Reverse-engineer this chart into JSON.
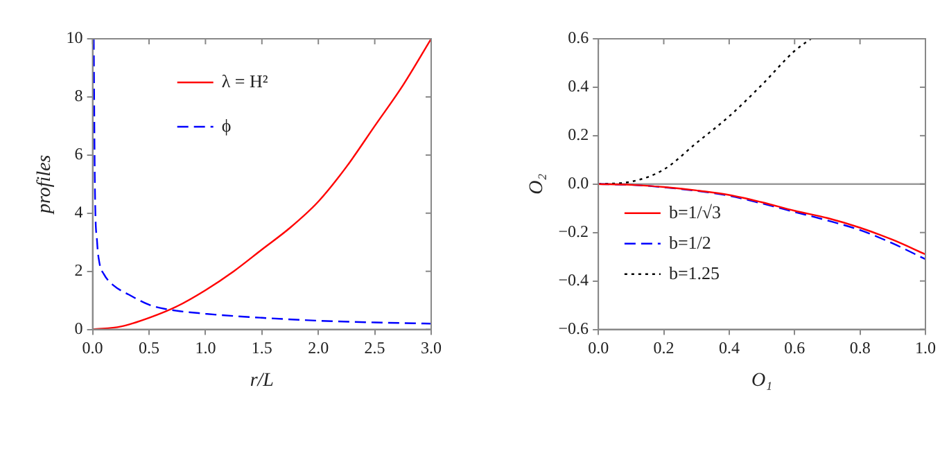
{
  "chart_data": [
    {
      "type": "line",
      "xlabel": "r/L",
      "ylabel": "profiles",
      "xlim": [
        0,
        3
      ],
      "xticks": [
        {
          "value": 0,
          "label": "0.0"
        },
        {
          "value": 0.5,
          "label": "0.5"
        },
        {
          "value": 1,
          "label": "1.0"
        },
        {
          "value": 1.5,
          "label": "1.5"
        },
        {
          "value": 2,
          "label": "2.0"
        },
        {
          "value": 2.5,
          "label": "2.5"
        },
        {
          "value": 3,
          "label": "3.0"
        }
      ],
      "ylim": [
        0,
        10
      ],
      "yticks": [
        0,
        2,
        4,
        6,
        8,
        10
      ],
      "grid": false,
      "legend": "top",
      "marker": "none",
      "series": [
        {
          "name": "λ = H²",
          "color": "#ff0000",
          "line_style": "solid",
          "x": [
            0,
            0.25,
            0.5,
            0.75,
            1,
            1.25,
            1.5,
            1.75,
            2,
            2.25,
            2.5,
            2.75,
            3
          ],
          "values": [
            0,
            0.1,
            0.4,
            0.8,
            1.35,
            2,
            2.75,
            3.5,
            4.4,
            5.6,
            7,
            8.4,
            10
          ]
        },
        {
          "name": "ϕ",
          "color": "#0000ff",
          "line_style": "dashed",
          "x": [
            0.01,
            0.02,
            0.04,
            0.06,
            0.1,
            0.19,
            0.32,
            0.5,
            0.65,
            1,
            1.5,
            2,
            2.5,
            3
          ],
          "values": [
            10,
            5,
            3,
            2.3,
            1.9,
            1.5,
            1.2,
            0.85,
            0.7,
            0.54,
            0.4,
            0.3,
            0.24,
            0.2
          ]
        }
      ]
    },
    {
      "type": "line",
      "xlabel": "O₁",
      "ylabel": "O₂",
      "xlim": [
        0,
        1
      ],
      "xticks": [
        {
          "value": 0,
          "label": "0.0"
        },
        0.2,
        0.4,
        0.6,
        0.8,
        {
          "value": 1,
          "label": "1.0"
        }
      ],
      "ylim": [
        -0.6,
        0.6
      ],
      "yticks": [
        -0.6,
        -0.4,
        -0.2,
        {
          "value": 0,
          "label": "0.0"
        },
        0.2,
        0.4,
        0.6
      ],
      "grid": false,
      "legend": "left",
      "marker": "none",
      "ref_lines": [
        {
          "axis": "y",
          "value": 0,
          "color": "#999999"
        }
      ],
      "series": [
        {
          "name": "b=1/√3",
          "color": "#ff0000",
          "line_style": "solid",
          "x": [
            0,
            0.1,
            0.2,
            0.3,
            0.4,
            0.5,
            0.6,
            0.7,
            0.8,
            0.9,
            1
          ],
          "values": [
            0,
            -0.003,
            -0.012,
            -0.026,
            -0.045,
            -0.075,
            -0.11,
            -0.14,
            -0.18,
            -0.23,
            -0.29
          ]
        },
        {
          "name": "b=1/2",
          "color": "#0000ff",
          "line_style": "dashed",
          "x": [
            0,
            0.1,
            0.2,
            0.3,
            0.4,
            0.5,
            0.6,
            0.7,
            0.8,
            0.9,
            1
          ],
          "values": [
            0,
            -0.003,
            -0.013,
            -0.028,
            -0.048,
            -0.08,
            -0.115,
            -0.15,
            -0.19,
            -0.245,
            -0.31
          ]
        },
        {
          "name": "b=1.25",
          "color": "#000000",
          "line_style": "dotted",
          "x": [
            0,
            0.1,
            0.2,
            0.3,
            0.4,
            0.5,
            0.6,
            0.65
          ],
          "values": [
            0,
            0.01,
            0.06,
            0.17,
            0.28,
            0.41,
            0.55,
            0.6
          ]
        }
      ]
    }
  ]
}
